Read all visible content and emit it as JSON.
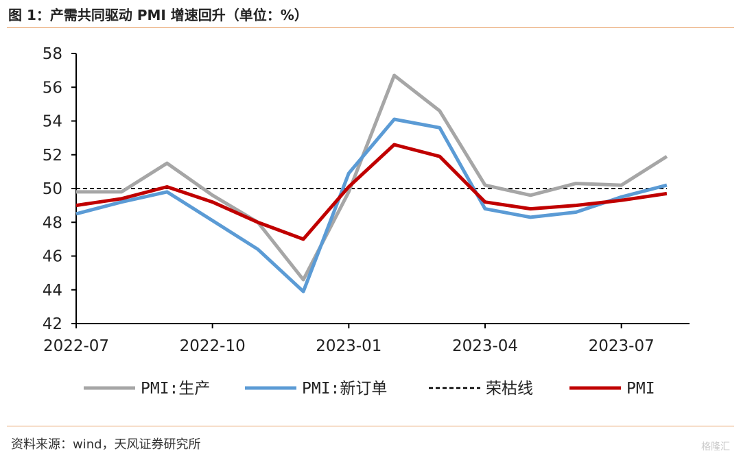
{
  "header": {
    "title": "图 1：产需共同驱动 PMI 增速回升（单位：%）"
  },
  "footer": {
    "source": "资料来源：wind，天风证券研究所",
    "watermark": "格隆汇"
  },
  "chart_data": {
    "type": "line",
    "x": [
      "2022-07",
      "2022-08",
      "2022-09",
      "2022-10",
      "2022-11",
      "2022-12",
      "2023-01",
      "2023-02",
      "2023-03",
      "2023-04",
      "2023-05",
      "2023-06",
      "2023-07",
      "2023-08"
    ],
    "x_tick_labels": [
      "2022-07",
      "2022-10",
      "2023-01",
      "2023-04",
      "2023-07"
    ],
    "ylim": [
      42,
      58
    ],
    "y_ticks": [
      42,
      44,
      46,
      48,
      50,
      52,
      54,
      56,
      58
    ],
    "grid": false,
    "legend_position": "bottom",
    "series": [
      {
        "name": "PMI:生产",
        "color": "#a6a6a6",
        "style": "solid",
        "values": [
          49.8,
          49.8,
          51.5,
          49.6,
          48.0,
          44.6,
          49.8,
          56.7,
          54.6,
          50.2,
          49.6,
          50.3,
          50.2,
          51.9
        ]
      },
      {
        "name": "PMI:新订单",
        "color": "#5b9bd5",
        "style": "solid",
        "values": [
          48.5,
          49.2,
          49.8,
          48.1,
          46.4,
          43.9,
          50.9,
          54.1,
          53.6,
          48.8,
          48.3,
          48.6,
          49.5,
          50.2
        ]
      },
      {
        "name": "荣枯线",
        "color": "#000000",
        "style": "dashed",
        "values": [
          50,
          50,
          50,
          50,
          50,
          50,
          50,
          50,
          50,
          50,
          50,
          50,
          50,
          50
        ]
      },
      {
        "name": "PMI",
        "color": "#c00000",
        "style": "solid",
        "values": [
          49.0,
          49.4,
          50.1,
          49.2,
          48.0,
          47.0,
          50.1,
          52.6,
          51.9,
          49.2,
          48.8,
          49.0,
          49.3,
          49.7
        ]
      }
    ]
  }
}
